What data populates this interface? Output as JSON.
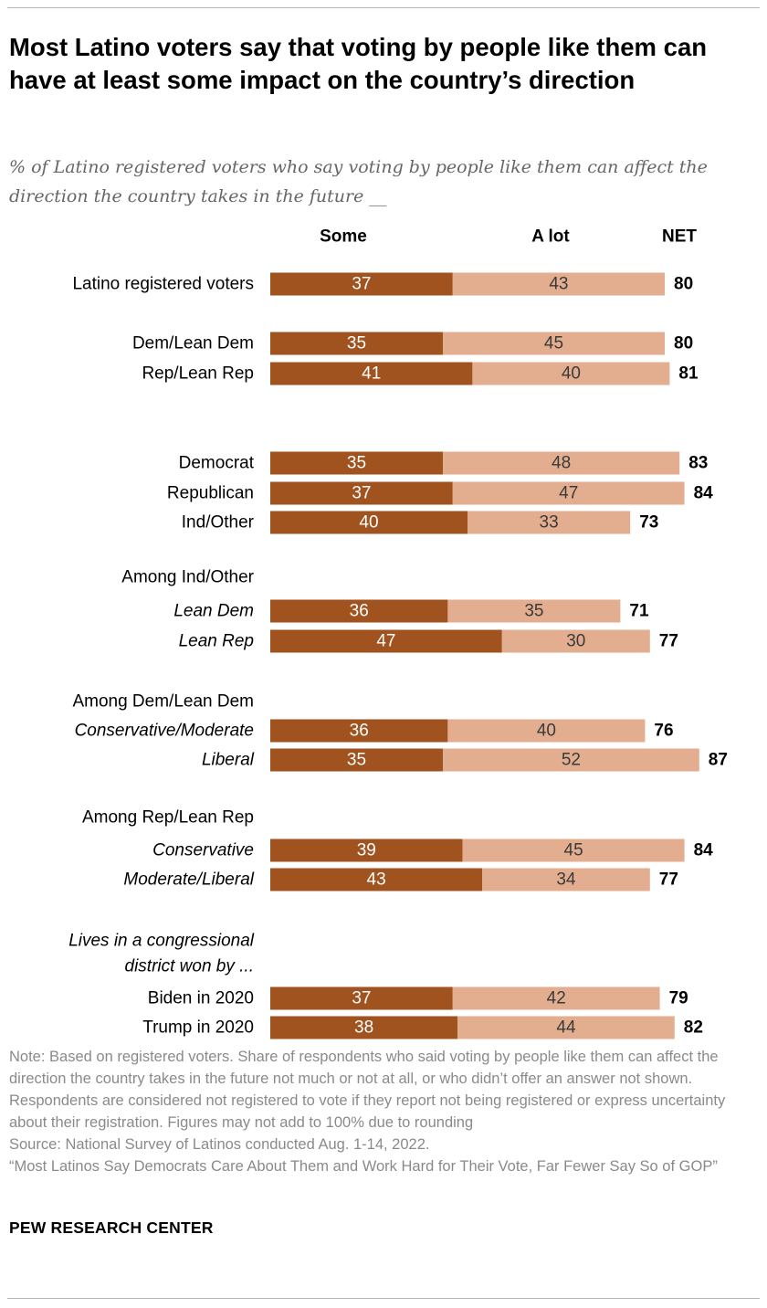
{
  "title": "Most Latino voters say that voting by people like them can have at least some impact on the country’s direction",
  "subtitle": "% of Latino registered voters who say voting by people like them can affect the direction the country takes in the future __",
  "note": "Note: Based on registered voters. Share of respondents who said voting by people like them can affect the direction the country takes in the future not much or not at all, or who didn’t offer an answer not shown. Respondents are considered not registered to vote if they report not being registered or express uncertainty about their registration.  Figures may not add to 100% due to rounding",
  "source": "Source: National Survey of Latinos conducted Aug. 1-14, 2022.",
  "report": "“Most Latinos Say Democrats Care About Them and Work Hard for Their Vote, Far Fewer Say So of GOP”",
  "brand": "PEW RESEARCH CENTER",
  "colors": {
    "some": "#a0521f",
    "a_lot": "#e3ae8f",
    "label_text_on_bar": "#ffffff",
    "group_text": "#000000"
  },
  "chart_data": {
    "type": "bar",
    "orientation": "horizontal",
    "stacked": true,
    "column_headers": [
      "Some",
      "A lot",
      "NET"
    ],
    "series": [
      {
        "name": "Some",
        "color": "#a0521f"
      },
      {
        "name": "A lot",
        "color": "#e3ae8f"
      }
    ],
    "groups": [
      {
        "label": "Latino registered voters",
        "italic": false,
        "row": true,
        "some": 37,
        "a_lot": 43,
        "net": 80
      },
      {
        "label": "Dem/Lean Dem",
        "italic": false,
        "row": true,
        "some": 35,
        "a_lot": 45,
        "net": 80
      },
      {
        "label": "Rep/Lean Rep",
        "italic": false,
        "row": true,
        "some": 41,
        "a_lot": 40,
        "net": 81
      },
      {
        "label": "Democrat",
        "italic": false,
        "row": true,
        "some": 35,
        "a_lot": 48,
        "net": 83
      },
      {
        "label": "Republican",
        "italic": false,
        "row": true,
        "some": 37,
        "a_lot": 47,
        "net": 84
      },
      {
        "label": "Ind/Other",
        "italic": false,
        "row": true,
        "some": 40,
        "a_lot": 33,
        "net": 73
      },
      {
        "label": "Among Ind/Other",
        "italic": false,
        "row": false
      },
      {
        "label": "Lean Dem",
        "italic": true,
        "row": true,
        "some": 36,
        "a_lot": 35,
        "net": 71
      },
      {
        "label": "Lean Rep",
        "italic": true,
        "row": true,
        "some": 47,
        "a_lot": 30,
        "net": 77
      },
      {
        "label": "Among Dem/Lean Dem",
        "italic": false,
        "row": false
      },
      {
        "label": "Conservative/Moderate",
        "italic": true,
        "row": true,
        "some": 36,
        "a_lot": 40,
        "net": 76
      },
      {
        "label": "Liberal",
        "italic": true,
        "row": true,
        "some": 35,
        "a_lot": 52,
        "net": 87
      },
      {
        "label": "Among Rep/Lean Rep",
        "italic": false,
        "row": false
      },
      {
        "label": "Conservative",
        "italic": true,
        "row": true,
        "some": 39,
        "a_lot": 45,
        "net": 84
      },
      {
        "label": "Moderate/Liberal",
        "italic": true,
        "row": true,
        "some": 43,
        "a_lot": 34,
        "net": 77
      },
      {
        "label": "Lives in a congressional",
        "italic": true,
        "row": false
      },
      {
        "label": "district won by ...",
        "italic": true,
        "row": false
      },
      {
        "label": "Biden in 2020",
        "italic": false,
        "row": true,
        "some": 37,
        "a_lot": 42,
        "net": 79
      },
      {
        "label": "Trump in 2020",
        "italic": false,
        "row": true,
        "some": 38,
        "a_lot": 44,
        "net": 82
      }
    ]
  }
}
